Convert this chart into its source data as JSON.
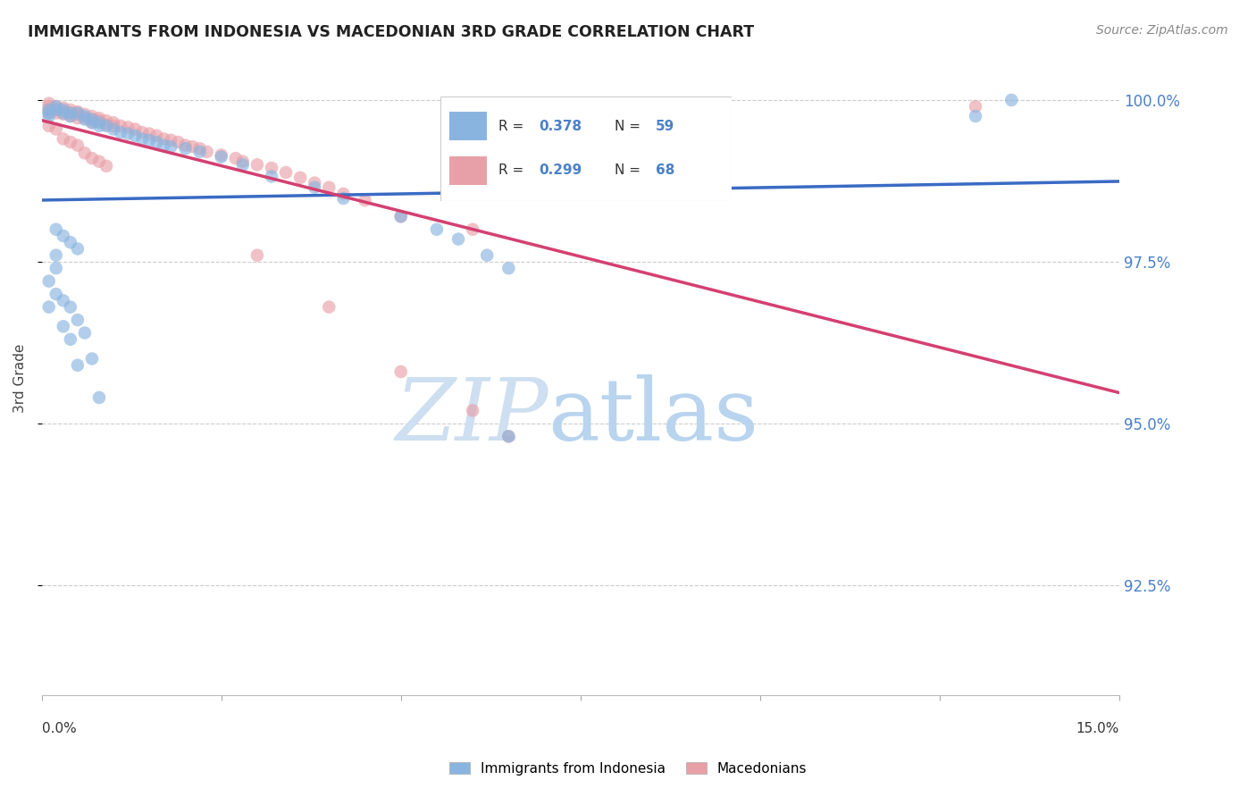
{
  "title": "IMMIGRANTS FROM INDONESIA VS MACEDONIAN 3RD GRADE CORRELATION CHART",
  "source": "Source: ZipAtlas.com",
  "ylabel": "3rd Grade",
  "ytick_values": [
    0.925,
    0.95,
    0.975,
    1.0
  ],
  "xlim": [
    0.0,
    0.15
  ],
  "ylim": [
    0.908,
    1.006
  ],
  "legend_r1": "0.378",
  "legend_n1": "59",
  "legend_r2": "0.299",
  "legend_n2": "68",
  "color_blue": "#8ab4e0",
  "color_pink": "#e8a0a8",
  "color_blue_line": "#3a6bc4",
  "color_pink_line": "#d44070",
  "color_title": "#222222",
  "color_source": "#888888",
  "color_grid": "#cccccc",
  "color_watermark_zip": "#cddff0",
  "color_watermark_atlas": "#b8d4ee",
  "color_right_axis": "#4a80c8",
  "blue_x": [
    0.001,
    0.001,
    0.001,
    0.001,
    0.001,
    0.002,
    0.002,
    0.002,
    0.002,
    0.003,
    0.003,
    0.003,
    0.004,
    0.004,
    0.004,
    0.005,
    0.005,
    0.006,
    0.006,
    0.007,
    0.007,
    0.008,
    0.008,
    0.009,
    0.01,
    0.011,
    0.012,
    0.013,
    0.014,
    0.015,
    0.016,
    0.017,
    0.018,
    0.02,
    0.022,
    0.025,
    0.028,
    0.032,
    0.038,
    0.042,
    0.05,
    0.055,
    0.058,
    0.062,
    0.065,
    0.002,
    0.003,
    0.004,
    0.005,
    0.002,
    0.003,
    0.004,
    0.005,
    0.006,
    0.007,
    0.008,
    0.13,
    0.135,
    0.065
  ],
  "blue_y": [
    0.9985,
    0.998,
    0.9975,
    0.972,
    0.968,
    0.999,
    0.9985,
    0.976,
    0.974,
    0.9985,
    0.998,
    0.965,
    0.998,
    0.9975,
    0.963,
    0.998,
    0.959,
    0.9975,
    0.997,
    0.997,
    0.9965,
    0.9965,
    0.996,
    0.996,
    0.9955,
    0.995,
    0.9948,
    0.9945,
    0.994,
    0.9938,
    0.9935,
    0.993,
    0.9928,
    0.9925,
    0.992,
    0.9912,
    0.99,
    0.9882,
    0.9865,
    0.9848,
    0.982,
    0.98,
    0.9785,
    0.976,
    0.974,
    0.98,
    0.979,
    0.978,
    0.977,
    0.97,
    0.969,
    0.968,
    0.966,
    0.964,
    0.96,
    0.954,
    0.9975,
    1.0,
    0.948
  ],
  "pink_x": [
    0.001,
    0.001,
    0.001,
    0.001,
    0.002,
    0.002,
    0.002,
    0.003,
    0.003,
    0.003,
    0.004,
    0.004,
    0.004,
    0.005,
    0.005,
    0.005,
    0.006,
    0.006,
    0.007,
    0.007,
    0.007,
    0.008,
    0.008,
    0.009,
    0.009,
    0.01,
    0.01,
    0.011,
    0.012,
    0.013,
    0.014,
    0.015,
    0.016,
    0.017,
    0.018,
    0.019,
    0.02,
    0.021,
    0.022,
    0.023,
    0.025,
    0.027,
    0.028,
    0.03,
    0.032,
    0.034,
    0.036,
    0.038,
    0.04,
    0.042,
    0.045,
    0.05,
    0.06,
    0.001,
    0.002,
    0.003,
    0.004,
    0.005,
    0.006,
    0.007,
    0.008,
    0.009,
    0.03,
    0.04,
    0.05,
    0.06,
    0.065,
    0.13
  ],
  "pink_y": [
    0.9995,
    0.999,
    0.9985,
    0.998,
    0.999,
    0.9985,
    0.998,
    0.9988,
    0.9982,
    0.9978,
    0.9985,
    0.998,
    0.9975,
    0.9982,
    0.9978,
    0.9972,
    0.9978,
    0.9972,
    0.9975,
    0.997,
    0.9965,
    0.9972,
    0.9968,
    0.9968,
    0.9962,
    0.9965,
    0.996,
    0.996,
    0.9958,
    0.9955,
    0.995,
    0.9948,
    0.9945,
    0.994,
    0.9938,
    0.9935,
    0.993,
    0.9928,
    0.9925,
    0.992,
    0.9915,
    0.991,
    0.9905,
    0.99,
    0.9895,
    0.9888,
    0.988,
    0.9872,
    0.9865,
    0.9855,
    0.9845,
    0.982,
    0.98,
    0.996,
    0.9955,
    0.994,
    0.9935,
    0.993,
    0.9918,
    0.991,
    0.9905,
    0.9898,
    0.976,
    0.968,
    0.958,
    0.952,
    0.948,
    0.999
  ]
}
